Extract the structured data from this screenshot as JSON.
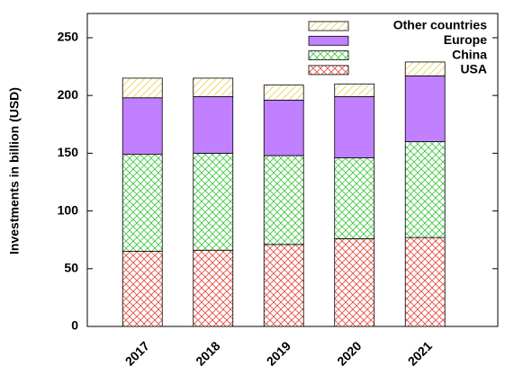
{
  "chart_data": {
    "type": "stacked-bar",
    "y_label": "Investments in billion (USD)",
    "categories": [
      "2017",
      "2018",
      "2019",
      "2020",
      "2021"
    ],
    "series": [
      {
        "name": "USA",
        "color": "#e8463c",
        "fill_style": "crosshatch",
        "values": [
          65,
          66,
          71,
          76,
          77
        ]
      },
      {
        "name": "China",
        "color": "#3cc83c",
        "fill_style": "crosshatch",
        "values": [
          84,
          84,
          77,
          70,
          83
        ]
      },
      {
        "name": "Europe",
        "color": "#c080ff",
        "fill_style": "solid",
        "values": [
          49,
          49,
          48,
          53,
          57
        ]
      },
      {
        "name": "Other countries",
        "color": "#e8d050",
        "fill_style": "hatch",
        "values": [
          17,
          16,
          13,
          11,
          12
        ]
      }
    ],
    "ylim": [
      0,
      271
    ],
    "yticks": [
      0,
      50,
      100,
      150,
      200,
      250
    ],
    "legend": "top-right"
  }
}
